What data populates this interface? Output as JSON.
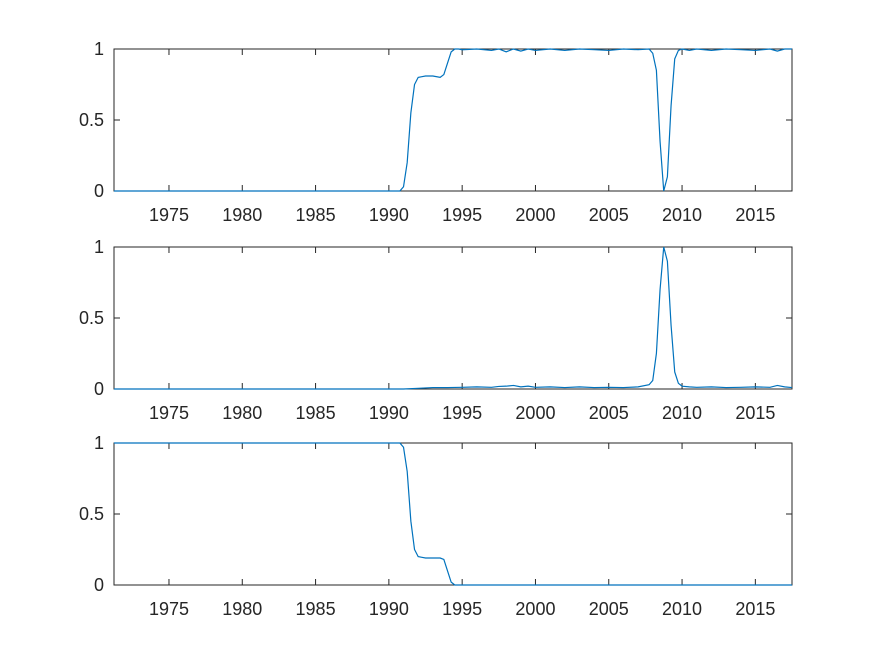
{
  "chart_data": [
    {
      "type": "line",
      "xlim": [
        1971.25,
        2017.5
      ],
      "ylim": [
        0,
        1
      ],
      "x_ticks": [
        1975,
        1980,
        1985,
        1990,
        1995,
        2000,
        2005,
        2010,
        2015
      ],
      "y_ticks": [
        0,
        0.5,
        1
      ],
      "x_tick_labels": [
        "1975",
        "1980",
        "1985",
        "1990",
        "1995",
        "2000",
        "2005",
        "2010",
        "2015"
      ],
      "y_tick_labels": [
        "0",
        "0.5",
        "1"
      ],
      "grid": false,
      "series": [
        {
          "color": "#0072BD",
          "x": [
            1971.25,
            1990.75,
            1991.0,
            1991.25,
            1991.5,
            1991.75,
            1992.0,
            1992.25,
            1992.5,
            1993.0,
            1993.5,
            1993.75,
            1994.0,
            1994.25,
            1994.5,
            1994.75,
            1995.0,
            1996.0,
            1997.0,
            1997.5,
            1998.0,
            1998.5,
            1999.0,
            1999.5,
            2000.0,
            2001.0,
            2002.0,
            2003.0,
            2004.0,
            2005.0,
            2006.0,
            2007.0,
            2007.75,
            2008.0,
            2008.25,
            2008.5,
            2008.75,
            2009.0,
            2009.25,
            2009.5,
            2009.75,
            2010.0,
            2010.5,
            2011.0,
            2012.0,
            2013.0,
            2014.0,
            2015.0,
            2016.0,
            2016.5,
            2017.0,
            2017.5
          ],
          "y": [
            0,
            0,
            0.03,
            0.2,
            0.55,
            0.75,
            0.8,
            0.805,
            0.81,
            0.81,
            0.8,
            0.82,
            0.9,
            0.98,
            1.0,
            1.0,
            0.995,
            1.0,
            0.99,
            1.0,
            0.98,
            1.0,
            0.985,
            1.0,
            0.99,
            1.0,
            0.99,
            1.0,
            0.995,
            0.99,
            1.0,
            0.995,
            1.0,
            0.97,
            0.85,
            0.35,
            0.0,
            0.1,
            0.6,
            0.93,
            0.99,
            1.0,
            0.99,
            1.0,
            0.99,
            1.0,
            0.995,
            0.99,
            1.0,
            0.985,
            1.0,
            1.0
          ]
        }
      ]
    },
    {
      "type": "line",
      "xlim": [
        1971.25,
        2017.5
      ],
      "ylim": [
        0,
        1
      ],
      "x_ticks": [
        1975,
        1980,
        1985,
        1990,
        1995,
        2000,
        2005,
        2010,
        2015
      ],
      "y_ticks": [
        0,
        0.5,
        1
      ],
      "x_tick_labels": [
        "1975",
        "1980",
        "1985",
        "1990",
        "1995",
        "2000",
        "2005",
        "2010",
        "2015"
      ],
      "y_tick_labels": [
        "0",
        "0.5",
        "1"
      ],
      "grid": false,
      "series": [
        {
          "color": "#0072BD",
          "x": [
            1971.25,
            1990.0,
            1991.0,
            1992.0,
            1993.0,
            1994.0,
            1995.0,
            1996.0,
            1997.0,
            1997.5,
            1998.0,
            1998.5,
            1999.0,
            1999.5,
            2000.0,
            2001.0,
            2002.0,
            2003.0,
            2004.0,
            2005.0,
            2006.0,
            2007.0,
            2007.75,
            2008.0,
            2008.25,
            2008.5,
            2008.75,
            2009.0,
            2009.25,
            2009.5,
            2009.75,
            2010.0,
            2010.5,
            2011.0,
            2012.0,
            2013.0,
            2014.0,
            2015.0,
            2016.0,
            2016.5,
            2017.0,
            2017.5
          ],
          "y": [
            0,
            0,
            0.0,
            0.005,
            0.01,
            0.01,
            0.012,
            0.015,
            0.012,
            0.018,
            0.02,
            0.025,
            0.015,
            0.02,
            0.012,
            0.015,
            0.01,
            0.015,
            0.01,
            0.012,
            0.01,
            0.015,
            0.03,
            0.06,
            0.25,
            0.7,
            1.0,
            0.9,
            0.45,
            0.12,
            0.04,
            0.02,
            0.015,
            0.012,
            0.015,
            0.01,
            0.012,
            0.015,
            0.012,
            0.025,
            0.015,
            0.01
          ]
        }
      ]
    },
    {
      "type": "line",
      "xlim": [
        1971.25,
        2017.5
      ],
      "ylim": [
        0,
        1
      ],
      "x_ticks": [
        1975,
        1980,
        1985,
        1990,
        1995,
        2000,
        2005,
        2010,
        2015
      ],
      "y_ticks": [
        0,
        0.5,
        1
      ],
      "x_tick_labels": [
        "1975",
        "1980",
        "1985",
        "1990",
        "1995",
        "2000",
        "2005",
        "2010",
        "2015"
      ],
      "y_tick_labels": [
        "0",
        "0.5",
        "1"
      ],
      "grid": false,
      "series": [
        {
          "color": "#0072BD",
          "x": [
            1971.25,
            1990.75,
            1991.0,
            1991.25,
            1991.5,
            1991.75,
            1992.0,
            1992.25,
            1992.5,
            1993.0,
            1993.5,
            1993.75,
            1994.0,
            1994.25,
            1994.5,
            1994.75,
            1995.0,
            2000.0,
            2005.0,
            2010.0,
            2015.0,
            2017.5
          ],
          "y": [
            1,
            1,
            0.97,
            0.8,
            0.45,
            0.25,
            0.2,
            0.195,
            0.19,
            0.19,
            0.19,
            0.18,
            0.1,
            0.02,
            0.0,
            0.0,
            0.0,
            0.0,
            0.0,
            0.0,
            0.0,
            0.0
          ]
        }
      ]
    }
  ]
}
